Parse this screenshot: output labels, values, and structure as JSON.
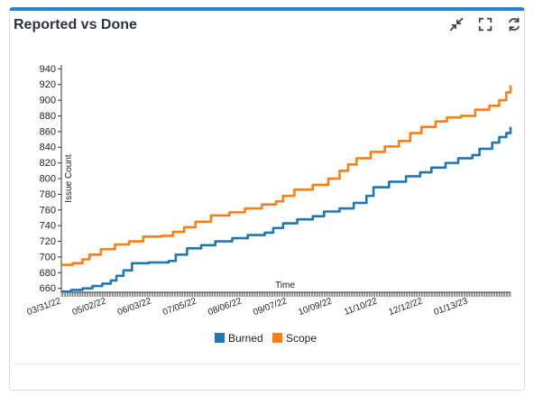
{
  "widget": {
    "title": "Reported vs Done",
    "actions": [
      {
        "name": "collapse-icon"
      },
      {
        "name": "fullscreen-icon"
      },
      {
        "name": "refresh-icon"
      }
    ]
  },
  "chart_data": {
    "type": "line",
    "title": "",
    "xlabel": "Time",
    "ylabel": "Issue Count",
    "ylim": [
      655,
      945
    ],
    "yticks": [
      660,
      680,
      700,
      720,
      740,
      760,
      780,
      800,
      820,
      840,
      860,
      880,
      900,
      920,
      940
    ],
    "xlim": [
      "2022-03-31",
      "2023-02-12"
    ],
    "xticks": [
      "03/31/22",
      "05/02/22",
      "06/03/22",
      "07/05/22",
      "08/06/22",
      "09/07/22",
      "10/09/22",
      "11/10/22",
      "12/12/22",
      "01/13/23"
    ],
    "legend_position": "bottom",
    "series": [
      {
        "name": "Burned",
        "color": "#1f77b4",
        "points": [
          [
            "2022-03-31",
            656
          ],
          [
            "2022-04-07",
            658
          ],
          [
            "2022-04-15",
            660
          ],
          [
            "2022-04-22",
            663
          ],
          [
            "2022-04-29",
            666
          ],
          [
            "2022-05-05",
            670
          ],
          [
            "2022-05-09",
            676
          ],
          [
            "2022-05-14",
            683
          ],
          [
            "2022-05-20",
            692
          ],
          [
            "2022-06-01",
            693
          ],
          [
            "2022-06-15",
            695
          ],
          [
            "2022-06-20",
            703
          ],
          [
            "2022-06-28",
            711
          ],
          [
            "2022-07-08",
            715
          ],
          [
            "2022-07-18",
            720
          ],
          [
            "2022-07-30",
            724
          ],
          [
            "2022-08-10",
            728
          ],
          [
            "2022-08-22",
            731
          ],
          [
            "2022-08-28",
            737
          ],
          [
            "2022-09-04",
            743
          ],
          [
            "2022-09-14",
            748
          ],
          [
            "2022-09-25",
            752
          ],
          [
            "2022-10-03",
            758
          ],
          [
            "2022-10-14",
            762
          ],
          [
            "2022-10-24",
            769
          ],
          [
            "2022-11-02",
            778
          ],
          [
            "2022-11-07",
            789
          ],
          [
            "2022-11-18",
            796
          ],
          [
            "2022-11-30",
            803
          ],
          [
            "2022-12-10",
            808
          ],
          [
            "2022-12-18",
            814
          ],
          [
            "2022-12-28",
            820
          ],
          [
            "2023-01-06",
            826
          ],
          [
            "2023-01-16",
            830
          ],
          [
            "2023-01-21",
            838
          ],
          [
            "2023-01-30",
            846
          ],
          [
            "2023-02-04",
            853
          ],
          [
            "2023-02-09",
            858
          ],
          [
            "2023-02-12",
            866
          ]
        ]
      },
      {
        "name": "Scope",
        "color": "#ff7f0e",
        "points": [
          [
            "2022-03-31",
            690
          ],
          [
            "2022-04-08",
            692
          ],
          [
            "2022-04-15",
            697
          ],
          [
            "2022-04-20",
            703
          ],
          [
            "2022-04-28",
            710
          ],
          [
            "2022-05-08",
            716
          ],
          [
            "2022-05-18",
            720
          ],
          [
            "2022-05-28",
            726
          ],
          [
            "2022-06-10",
            727
          ],
          [
            "2022-06-18",
            732
          ],
          [
            "2022-06-26",
            738
          ],
          [
            "2022-07-04",
            745
          ],
          [
            "2022-07-15",
            753
          ],
          [
            "2022-07-28",
            757
          ],
          [
            "2022-08-08",
            762
          ],
          [
            "2022-08-20",
            767
          ],
          [
            "2022-08-30",
            771
          ],
          [
            "2022-09-04",
            778
          ],
          [
            "2022-09-12",
            786
          ],
          [
            "2022-09-25",
            792
          ],
          [
            "2022-10-06",
            800
          ],
          [
            "2022-10-14",
            810
          ],
          [
            "2022-10-20",
            818
          ],
          [
            "2022-10-26",
            826
          ],
          [
            "2022-11-05",
            834
          ],
          [
            "2022-11-15",
            841
          ],
          [
            "2022-11-25",
            848
          ],
          [
            "2022-12-03",
            858
          ],
          [
            "2022-12-11",
            866
          ],
          [
            "2022-12-21",
            873
          ],
          [
            "2022-12-29",
            878
          ],
          [
            "2023-01-08",
            880
          ],
          [
            "2023-01-18",
            888
          ],
          [
            "2023-01-28",
            893
          ],
          [
            "2023-02-04",
            900
          ],
          [
            "2023-02-09",
            910
          ],
          [
            "2023-02-12",
            919
          ]
        ]
      }
    ]
  }
}
